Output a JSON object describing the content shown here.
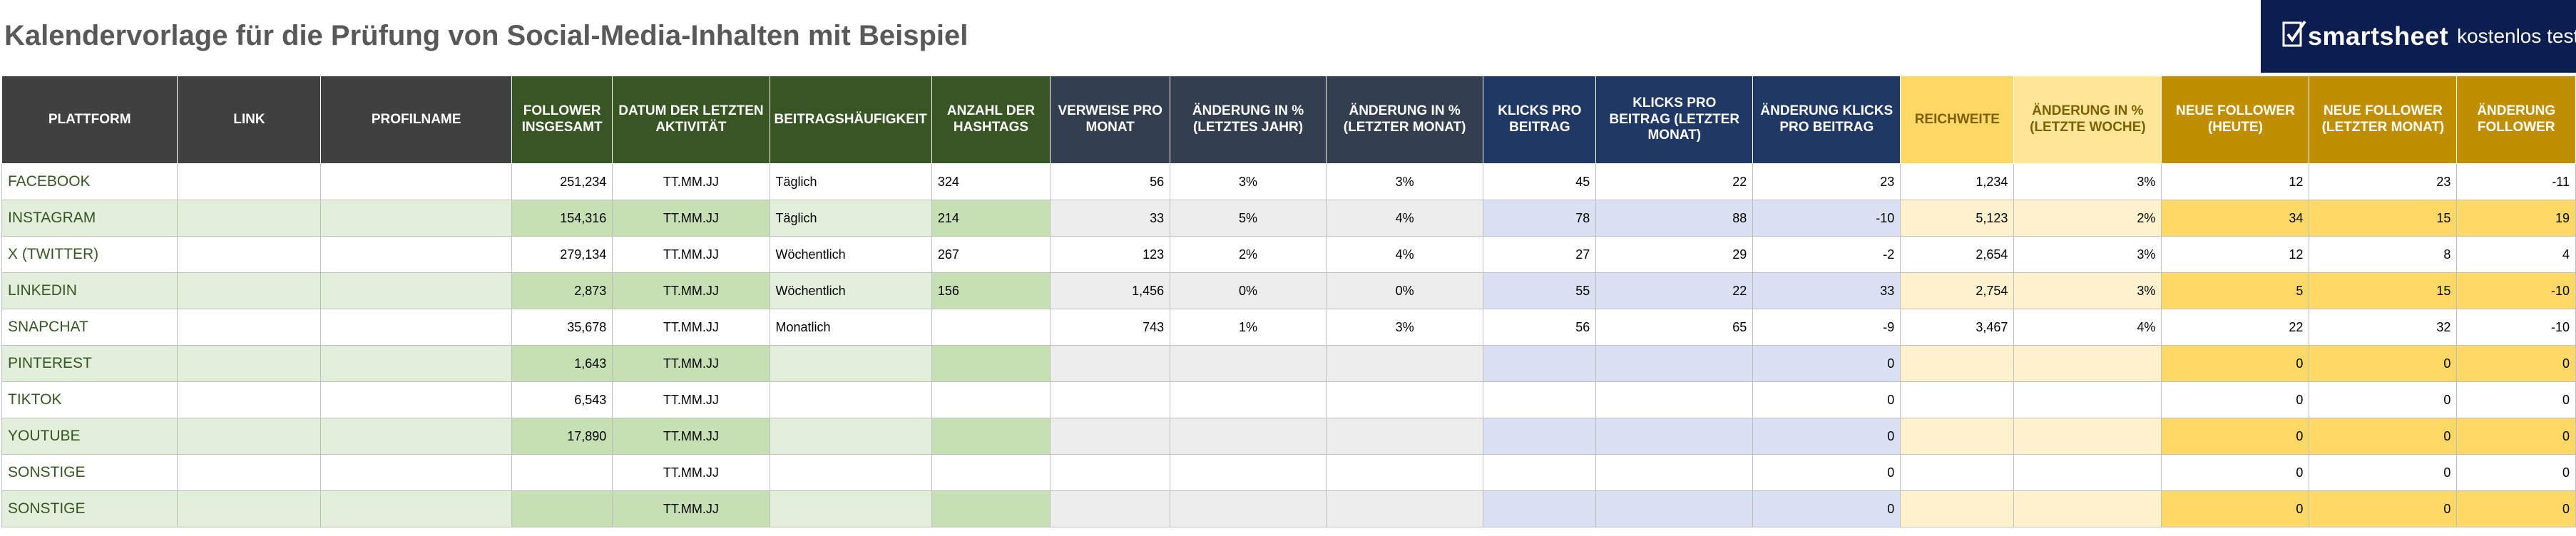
{
  "title": "Kalendervorlage für die Prüfung von Social-Media-Inhalten mit Beispiel",
  "banner": {
    "brand": "smartsheet",
    "tagline": "kostenlos testen",
    "logo_icon": "smartsheet-checkmark-icon"
  },
  "colors": {
    "header_dark": "#404040",
    "header_green": "#375623",
    "header_navy": "#333f4f",
    "header_blue": "#1f3864",
    "header_gold_light": "#ffd966",
    "header_gold": "#bf8f00",
    "banner": "#0c1e50"
  },
  "headers": [
    "PLATTFORM",
    "LINK",
    "PROFILNAME",
    "FOLLOWER INSGESAMT",
    "DATUM DER LETZTEN AKTIVITÄT",
    "BEITRAGSHÄUFIGKEIT",
    "ANZAHL DER HASHTAGS",
    "VERWEISE PRO MONAT",
    "ÄNDERUNG IN % (LETZTES JAHR)",
    "ÄNDERUNG IN % (LETZTER MONAT)",
    "KLICKS PRO BEITRAG",
    "KLICKS PRO BEITRAG (LETZTER MONAT)",
    "ÄNDERUNG KLICKS PRO BEITRAG",
    "REICHWEITE",
    "ÄNDERUNG IN % (LETZTE WOCHE)",
    "NEUE FOLLOWER (HEUTE)",
    "NEUE FOLLOWER (LETZTER MONAT)",
    "ÄNDERUNG FOLLOWER"
  ],
  "rows": [
    [
      "FACEBOOK",
      "",
      "",
      "251,234",
      "TT.MM.JJ",
      "Täglich",
      "324",
      "56",
      "3%",
      "3%",
      "45",
      "22",
      "23",
      "1,234",
      "3%",
      "12",
      "23",
      "-11"
    ],
    [
      "INSTAGRAM",
      "",
      "",
      "154,316",
      "TT.MM.JJ",
      "Täglich",
      "214",
      "33",
      "5%",
      "4%",
      "78",
      "88",
      "-10",
      "5,123",
      "2%",
      "34",
      "15",
      "19"
    ],
    [
      "X (TWITTER)",
      "",
      "",
      "279,134",
      "TT.MM.JJ",
      "Wöchentlich",
      "267",
      "123",
      "2%",
      "4%",
      "27",
      "29",
      "-2",
      "2,654",
      "3%",
      "12",
      "8",
      "4"
    ],
    [
      "LINKEDIN",
      "",
      "",
      "2,873",
      "TT.MM.JJ",
      "Wöchentlich",
      "156",
      "1,456",
      "0%",
      "0%",
      "55",
      "22",
      "33",
      "2,754",
      "3%",
      "5",
      "15",
      "-10"
    ],
    [
      "SNAPCHAT",
      "",
      "",
      "35,678",
      "TT.MM.JJ",
      "Monatlich",
      "",
      "743",
      "1%",
      "3%",
      "56",
      "65",
      "-9",
      "3,467",
      "4%",
      "22",
      "32",
      "-10"
    ],
    [
      "PINTEREST",
      "",
      "",
      "1,643",
      "TT.MM.JJ",
      "",
      "",
      "",
      "",
      "",
      "",
      "",
      "0",
      "",
      "",
      "0",
      "0",
      "0"
    ],
    [
      "TIKTOK",
      "",
      "",
      "6,543",
      "TT.MM.JJ",
      "",
      "",
      "",
      "",
      "",
      "",
      "",
      "0",
      "",
      "",
      "0",
      "0",
      "0"
    ],
    [
      "YOUTUBE",
      "",
      "",
      "17,890",
      "TT.MM.JJ",
      "",
      "",
      "",
      "",
      "",
      "",
      "",
      "0",
      "",
      "",
      "0",
      "0",
      "0"
    ],
    [
      "SONSTIGE",
      "",
      "",
      "",
      "TT.MM.JJ",
      "",
      "",
      "",
      "",
      "",
      "",
      "",
      "0",
      "",
      "",
      "0",
      "0",
      "0"
    ],
    [
      "SONSTIGE",
      "",
      "",
      "",
      "TT.MM.JJ",
      "",
      "",
      "",
      "",
      "",
      "",
      "",
      "0",
      "",
      "",
      "0",
      "0",
      "0"
    ]
  ]
}
